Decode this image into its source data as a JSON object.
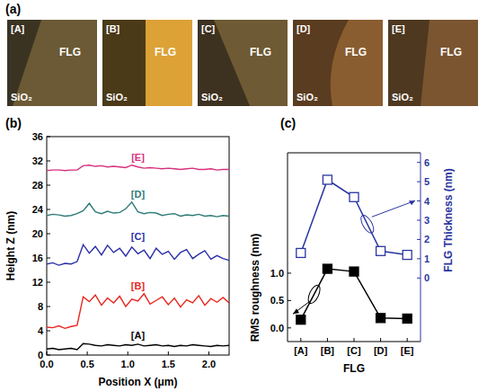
{
  "chart_data": [
    {
      "type": "image_grid",
      "title": "(a)",
      "panels": [
        {
          "label": "[A]",
          "regions": [
            "FLG",
            "SiO₂"
          ]
        },
        {
          "label": "[B]",
          "regions": [
            "FLG",
            "SiO₂"
          ]
        },
        {
          "label": "[C]",
          "regions": [
            "FLG",
            "SiO₂"
          ]
        },
        {
          "label": "[D]",
          "regions": [
            "FLG",
            "SiO₂"
          ]
        },
        {
          "label": "[E]",
          "regions": [
            "FLG",
            "SiO₂"
          ]
        }
      ]
    },
    {
      "type": "line",
      "title": "(b)",
      "xlabel": "Position X (μm)",
      "ylabel": "Height Z (nm)",
      "x": [
        0,
        0.075,
        0.15,
        0.225,
        0.3,
        0.375,
        0.45,
        0.525,
        0.6,
        0.675,
        0.75,
        0.825,
        0.9,
        0.975,
        1.05,
        1.125,
        1.2,
        1.275,
        1.35,
        1.425,
        1.5,
        1.575,
        1.65,
        1.725,
        1.8,
        1.875,
        1.95,
        2.025,
        2.1,
        2.175,
        2.25
      ],
      "xlim": [
        0,
        2.25
      ],
      "xticks": [
        {
          "value": 0,
          "label": "0.0"
        },
        {
          "value": 0.5,
          "label": "0.5"
        },
        {
          "value": 1,
          "label": "1.0"
        },
        {
          "value": 1.5,
          "label": "1.5"
        },
        {
          "value": 2,
          "label": "2.0"
        }
      ],
      "ylim": [
        0,
        36
      ],
      "yticks": [
        0,
        4,
        8,
        12,
        16,
        20,
        24,
        28,
        32,
        36
      ],
      "grid": false,
      "series": [
        {
          "name": "[A]",
          "color": "#000000",
          "values": [
            1.0,
            1.1,
            0.9,
            1.0,
            1.1,
            0.9,
            1.9,
            1.8,
            1.6,
            1.5,
            1.7,
            1.6,
            1.5,
            1.7,
            1.6,
            1.8,
            1.5,
            1.6,
            1.7,
            1.5,
            1.6,
            1.4,
            1.6,
            1.5,
            1.7,
            1.6,
            1.5,
            1.4,
            1.6,
            1.5,
            1.6
          ]
        },
        {
          "name": "[B]",
          "color": "#e8261e",
          "values": [
            4.6,
            4.5,
            4.8,
            4.4,
            4.7,
            4.9,
            9.6,
            8.8,
            9.9,
            8.2,
            9.4,
            8.6,
            9.7,
            8.0,
            9.2,
            8.9,
            10.1,
            8.4,
            9.0,
            9.6,
            8.3,
            9.4,
            7.9,
            9.1,
            8.6,
            9.8,
            8.2,
            9.3,
            8.7,
            9.5,
            8.6
          ]
        },
        {
          "name": "[C]",
          "color": "#2a2fa8",
          "values": [
            15.0,
            15.2,
            14.8,
            15.1,
            15.0,
            15.4,
            18.2,
            16.8,
            17.9,
            16.5,
            18.1,
            16.9,
            17.6,
            16.3,
            17.8,
            16.7,
            17.3,
            15.9,
            17.6,
            16.6,
            17.1,
            15.8,
            16.9,
            17.4,
            15.9,
            16.6,
            17.2,
            15.8,
            16.4,
            15.9,
            15.6
          ]
        },
        {
          "name": "[D]",
          "color": "#2d7a78",
          "values": [
            23.0,
            23.2,
            23.1,
            22.9,
            23.0,
            23.3,
            23.8,
            25.0,
            23.6,
            23.3,
            23.7,
            23.4,
            23.5,
            24.1,
            25.2,
            23.6,
            23.3,
            23.5,
            23.4,
            23.0,
            23.2,
            23.3,
            22.9,
            23.1,
            23.0,
            23.2,
            22.9,
            23.0,
            22.8,
            23.0,
            22.9
          ]
        },
        {
          "name": "[E]",
          "color": "#d8307f",
          "values": [
            30.4,
            30.5,
            30.5,
            30.4,
            30.5,
            30.5,
            31.2,
            31.3,
            31.1,
            31.2,
            31.0,
            31.1,
            31.0,
            30.9,
            31.3,
            31.0,
            30.8,
            30.9,
            30.8,
            30.7,
            30.8,
            30.7,
            30.6,
            30.7,
            30.8,
            30.6,
            30.6,
            30.7,
            30.5,
            30.6,
            30.6
          ]
        }
      ]
    },
    {
      "type": "line",
      "title": "(c)",
      "xlabel": "FLG",
      "ylabel": "RMS roughness (nm)",
      "y2label": "FLG Thickness (nm)",
      "categories": [
        "[A]",
        "[B]",
        "[C]",
        "[D]",
        "[E]"
      ],
      "ylim": [
        -0.25,
        3.2
      ],
      "yticks": [
        {
          "value": 0,
          "label": "0.0"
        },
        {
          "value": 0.5,
          "label": "0.5"
        },
        {
          "value": 1,
          "label": "1.0"
        }
      ],
      "y2lim": [
        -3.3,
        6.5
      ],
      "y2ticks": [
        0,
        1,
        2,
        3,
        4,
        5,
        6
      ],
      "series": [
        {
          "color": "#000000",
          "marker": "square",
          "values": [
            0.15,
            1.08,
            1.03,
            0.18,
            0.17
          ]
        },
        {
          "color": "#2a35a0",
          "marker": "square-open",
          "axis": "y2",
          "values": [
            1.3,
            5.1,
            4.2,
            1.4,
            1.2
          ]
        }
      ]
    }
  ]
}
